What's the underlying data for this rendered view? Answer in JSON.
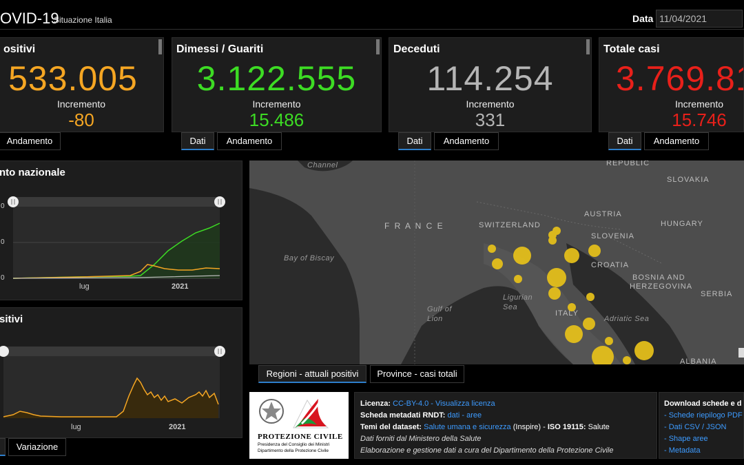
{
  "header": {
    "title": "OVID-19",
    "subtitle": "Situazione Italia",
    "date_label": "Data",
    "date_value": "11/04/2021"
  },
  "cards": [
    {
      "label": "ositivi",
      "value": "533.005",
      "inc_label": "Incremento",
      "inc_value": "-80",
      "color": "#f5a623",
      "tabs": [
        "Andamento"
      ]
    },
    {
      "label": "Dimessi / Guariti",
      "value": "3.122.555",
      "inc_label": "Incremento",
      "inc_value": "15.486",
      "color": "#3ddc24",
      "tabs": [
        "Dati",
        "Andamento"
      ]
    },
    {
      "label": "Deceduti",
      "value": "114.254",
      "inc_label": "Incremento",
      "inc_value": "331",
      "color": "#b5b5b5",
      "tabs": [
        "Dati",
        "Andamento"
      ]
    },
    {
      "label": "Totale casi",
      "value": "3.769.81",
      "inc_label": "Incremento",
      "inc_value": "15.746",
      "color": "#e8201a",
      "tabs": [
        "Dati",
        "Andamento"
      ]
    }
  ],
  "trend_panel": {
    "title": "nto nazionale",
    "y_ticks": [
      "0",
      "0",
      "0"
    ],
    "x_ticks": [
      "lug",
      "2021"
    ]
  },
  "positivi_panel": {
    "title": "sitivi",
    "x_ticks": [
      "lug",
      "2021"
    ],
    "tabs": [
      "Variazione"
    ]
  },
  "map": {
    "labels": {
      "republic": "REPUBLIC",
      "slovakia": "SLOVAKIA",
      "channel": "Channel",
      "france": "F R A N C E",
      "switzerland": "SWITZERLAND",
      "austria": "AUSTRIA",
      "hungary": "HUNGARY",
      "slovenia": "SLOVENIA",
      "croatia": "CROATIA",
      "bay_of_biscay": "Bay of Biscay",
      "bosnia": "BOSNIA AND",
      "herzegovina": "HERZEGOVINA",
      "serbia": "SERBIA",
      "ligurian": "Ligurian",
      "sea1": "Sea",
      "gulf": "Gulf of",
      "lion": "Lion",
      "italy": "ITALY",
      "adriatic": "Adriatic Sea",
      "albania": "ALBANIA"
    },
    "tabs": [
      "Regioni - attuali positivi",
      "Province - casi totali"
    ],
    "bubble_color": "#e8c21a"
  },
  "logo": {
    "name": "PROTEZIONE CIVILE",
    "line1": "Presidenza del Consiglio dei Ministri",
    "line2": "Dipartimento della Protezione Civile"
  },
  "info": {
    "licenza_label": "Licenza:",
    "licenza_link": "CC-BY-4.0",
    "licenza_sep": " - ",
    "licenza_view": "Visualizza licenza",
    "scheda_label": "Scheda metadati RNDT:",
    "scheda_dati": "dati",
    "scheda_sep": " - ",
    "scheda_aree": "aree",
    "temi_label": "Temi del dataset:",
    "temi_link": "Salute umana e sicurezza",
    "temi_rest": " (Inspire) - ",
    "iso_label": "ISO 19115:",
    "iso_value": " Salute",
    "line4": "Dati forniti dal Ministero della Salute",
    "line5": "Elaborazione e gestione dati a cura del Dipartimento della Protezione Civile"
  },
  "download": {
    "title": "Download schede e d",
    "items": [
      "- Schede riepilogo PDF",
      "- Dati CSV / JSON",
      "- Shape aree",
      "- Metadata"
    ]
  },
  "colors": {
    "green": "#3ddc24",
    "orange": "#f5a623",
    "link": "#3d9bff"
  }
}
